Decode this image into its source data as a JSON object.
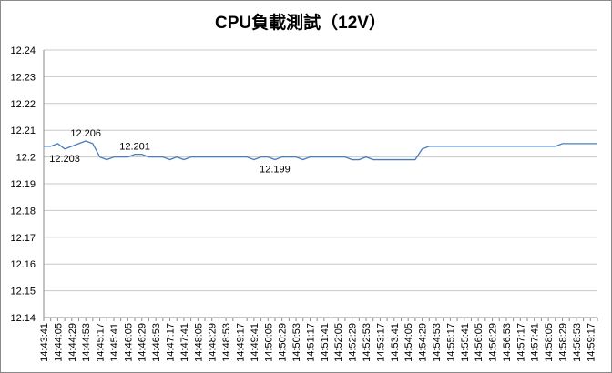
{
  "chart_data": {
    "type": "line",
    "title": "CPU負載測試（12V）",
    "categories": [
      "14:43:41",
      null,
      "14:44:05",
      null,
      "14:44:29",
      null,
      "14:44:53",
      null,
      "14:45:17",
      null,
      "14:45:41",
      null,
      "14:46:05",
      null,
      "14:46:29",
      null,
      "14:46:53",
      null,
      "14:47:17",
      null,
      "14:47:41",
      null,
      "14:48:05",
      null,
      "14:48:29",
      null,
      "14:48:53",
      null,
      "14:49:17",
      null,
      "14:49:41",
      null,
      "14:50:05",
      null,
      "14:50:29",
      null,
      "14:50:53",
      null,
      "14:51:17",
      null,
      "14:51:41",
      null,
      "14:52:05",
      null,
      "14:52:29",
      null,
      "14:52:53",
      null,
      "14:53:17",
      null,
      "14:53:41",
      null,
      "14:54:05",
      null,
      "14:54:29",
      null,
      "14:54:53",
      null,
      "14:55:17",
      null,
      "14:55:41",
      null,
      "14:56:05",
      null,
      "14:56:29",
      null,
      "14:56:53",
      null,
      "14:57:17",
      null,
      "14:57:41",
      null,
      "14:58:05",
      null,
      "14:58:29",
      null,
      "14:58:53",
      null,
      "14:59:17",
      null
    ],
    "series": [
      {
        "color": "#4a7ebb",
        "values": [
          12.204,
          12.204,
          12.205,
          12.203,
          12.204,
          12.205,
          12.206,
          12.205,
          12.2,
          12.199,
          12.2,
          12.2,
          12.2,
          12.201,
          12.201,
          12.2,
          12.2,
          12.2,
          12.199,
          12.2,
          12.199,
          12.2,
          12.2,
          12.2,
          12.2,
          12.2,
          12.2,
          12.2,
          12.2,
          12.2,
          12.199,
          12.2,
          12.2,
          12.199,
          12.2,
          12.2,
          12.2,
          12.199,
          12.2,
          12.2,
          12.2,
          12.2,
          12.2,
          12.2,
          12.199,
          12.199,
          12.2,
          12.199,
          12.199,
          12.199,
          12.199,
          12.199,
          12.199,
          12.199,
          12.203,
          12.204,
          12.204,
          12.204,
          12.204,
          12.204,
          12.204,
          12.204,
          12.204,
          12.204,
          12.204,
          12.204,
          12.204,
          12.204,
          12.204,
          12.204,
          12.204,
          12.204,
          12.204,
          12.204,
          12.205,
          12.205,
          12.205,
          12.205,
          12.205,
          12.205
        ],
        "value_labels": [
          null,
          null,
          null,
          "12.203",
          null,
          null,
          "12.206",
          null,
          null,
          null,
          null,
          null,
          null,
          "12.201",
          null,
          null,
          null,
          null,
          null,
          null,
          null,
          null,
          null,
          null,
          null,
          null,
          null,
          null,
          null,
          null,
          null,
          null,
          null,
          "12.199",
          null,
          null,
          null,
          null,
          null,
          null,
          null,
          null,
          null,
          null,
          null,
          null,
          null,
          null,
          null,
          null,
          null,
          null,
          null,
          null,
          null,
          null,
          null,
          null,
          null,
          null,
          null,
          null,
          null,
          null,
          null,
          null,
          null,
          null,
          null,
          null,
          null,
          null,
          null,
          null,
          null,
          null,
          null,
          null,
          null,
          null
        ]
      }
    ],
    "ylim": [
      12.14,
      12.24
    ],
    "yticks": [
      12.14,
      12.15,
      12.16,
      12.17,
      12.18,
      12.19,
      12.2,
      12.21,
      12.22,
      12.23,
      12.24
    ],
    "grid": true
  }
}
